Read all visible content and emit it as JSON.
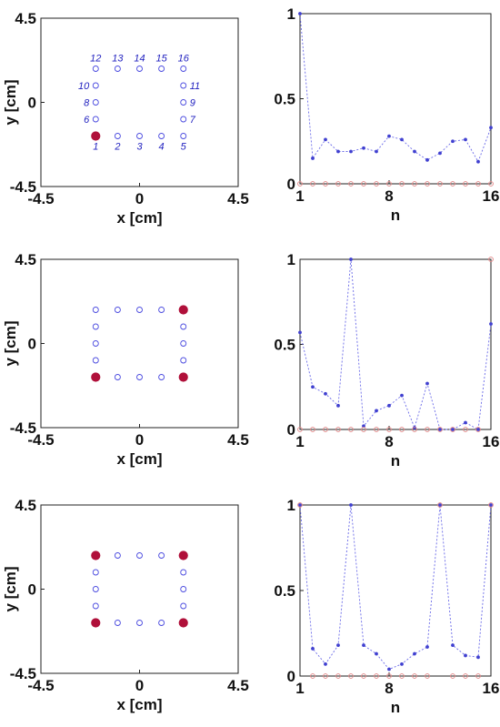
{
  "colors": {
    "open_marker": "#4a4adf",
    "filled_marker": "#b0103a",
    "series_line": "#6a6ae8",
    "zero_series": "#e08080"
  },
  "chart_data": [
    {
      "type": "scatter",
      "id": "layout1",
      "xlabel": "x [cm]",
      "ylabel": "y [cm]",
      "xlim": [
        -4.5,
        4.5
      ],
      "ylim": [
        -4.5,
        4.5
      ],
      "xticks": [
        -4.5,
        0,
        4.5
      ],
      "yticks": [
        -4.5,
        0,
        4.5
      ],
      "xtick_labels": [
        "-4.5",
        "0",
        "4.5"
      ],
      "ytick_labels": [
        "-4.5",
        "0",
        "4.5"
      ],
      "points": [
        {
          "n": 1,
          "label": "1",
          "x": -2,
          "y": -1.8,
          "filled": true
        },
        {
          "n": 2,
          "label": "2",
          "x": -1,
          "y": -1.8,
          "filled": false
        },
        {
          "n": 3,
          "label": "3",
          "x": 0,
          "y": -1.8,
          "filled": false
        },
        {
          "n": 4,
          "label": "4",
          "x": 1,
          "y": -1.8,
          "filled": false
        },
        {
          "n": 5,
          "label": "5",
          "x": 2,
          "y": -1.8,
          "filled": false
        },
        {
          "n": 6,
          "label": "6",
          "x": -2,
          "y": -0.9,
          "filled": false
        },
        {
          "n": 7,
          "label": "7",
          "x": 2,
          "y": -0.9,
          "filled": false
        },
        {
          "n": 8,
          "label": "8",
          "x": -2,
          "y": 0,
          "filled": false
        },
        {
          "n": 9,
          "label": "9",
          "x": 2,
          "y": 0,
          "filled": false
        },
        {
          "n": 10,
          "label": "10",
          "x": -2,
          "y": 0.9,
          "filled": false
        },
        {
          "n": 11,
          "label": "11",
          "x": 2,
          "y": 0.9,
          "filled": false
        },
        {
          "n": 12,
          "label": "12",
          "x": -2,
          "y": 1.8,
          "filled": false
        },
        {
          "n": 13,
          "label": "13",
          "x": -1,
          "y": 1.8,
          "filled": false
        },
        {
          "n": 14,
          "label": "14",
          "x": 0,
          "y": 1.8,
          "filled": false
        },
        {
          "n": 15,
          "label": "15",
          "x": 1,
          "y": 1.8,
          "filled": false
        },
        {
          "n": 16,
          "label": "16",
          "x": 2,
          "y": 1.8,
          "filled": false
        }
      ]
    },
    {
      "type": "line",
      "id": "response1",
      "xlabel": "n",
      "ylabel": "",
      "xlim": [
        1,
        16
      ],
      "ylim": [
        0,
        1
      ],
      "xticks": [
        1,
        8,
        16
      ],
      "yticks": [
        0,
        0.5,
        1
      ],
      "xtick_labels": [
        "1",
        "8",
        "16"
      ],
      "ytick_labels": [
        "0",
        "0.5",
        "1"
      ],
      "x": [
        1,
        2,
        3,
        4,
        5,
        6,
        7,
        8,
        9,
        10,
        11,
        12,
        13,
        14,
        15,
        16
      ],
      "series": [
        {
          "style": "blue-dotted-star",
          "values": [
            1.0,
            0.15,
            0.26,
            0.19,
            0.19,
            0.21,
            0.19,
            0.28,
            0.26,
            0.19,
            0.14,
            0.18,
            0.25,
            0.26,
            0.13,
            0.33
          ]
        },
        {
          "style": "red-open-circle",
          "values": [
            0,
            0,
            0,
            0,
            0,
            0,
            0,
            0,
            0,
            0,
            0,
            0,
            0,
            0,
            0,
            0
          ]
        }
      ]
    },
    {
      "type": "scatter",
      "id": "layout2",
      "xlabel": "x [cm]",
      "ylabel": "y [cm]",
      "xlim": [
        -4.5,
        4.5
      ],
      "ylim": [
        -4.5,
        4.5
      ],
      "xticks": [
        -4.5,
        0,
        4.5
      ],
      "yticks": [
        -4.5,
        0,
        4.5
      ],
      "xtick_labels": [
        "-4.5",
        "0",
        "4.5"
      ],
      "ytick_labels": [
        "-4.5",
        "0",
        "4.5"
      ],
      "points": [
        {
          "n": 1,
          "x": -2,
          "y": -1.8,
          "filled": true
        },
        {
          "n": 2,
          "x": -1,
          "y": -1.8,
          "filled": false
        },
        {
          "n": 3,
          "x": 0,
          "y": -1.8,
          "filled": false
        },
        {
          "n": 4,
          "x": 1,
          "y": -1.8,
          "filled": false
        },
        {
          "n": 5,
          "x": 2,
          "y": -1.8,
          "filled": true
        },
        {
          "n": 6,
          "x": -2,
          "y": -0.9,
          "filled": false
        },
        {
          "n": 7,
          "x": 2,
          "y": -0.9,
          "filled": false
        },
        {
          "n": 8,
          "x": -2,
          "y": 0,
          "filled": false
        },
        {
          "n": 9,
          "x": 2,
          "y": 0,
          "filled": false
        },
        {
          "n": 10,
          "x": -2,
          "y": 0.9,
          "filled": false
        },
        {
          "n": 11,
          "x": 2,
          "y": 0.9,
          "filled": false
        },
        {
          "n": 12,
          "x": -2,
          "y": 1.8,
          "filled": false
        },
        {
          "n": 13,
          "x": -1,
          "y": 1.8,
          "filled": false
        },
        {
          "n": 14,
          "x": 0,
          "y": 1.8,
          "filled": false
        },
        {
          "n": 15,
          "x": 1,
          "y": 1.8,
          "filled": false
        },
        {
          "n": 16,
          "x": 2,
          "y": 1.8,
          "filled": true
        }
      ]
    },
    {
      "type": "line",
      "id": "response2",
      "xlabel": "n",
      "ylabel": "",
      "xlim": [
        1,
        16
      ],
      "ylim": [
        0,
        1
      ],
      "xticks": [
        1,
        8,
        16
      ],
      "yticks": [
        0,
        0.5,
        1
      ],
      "xtick_labels": [
        "1",
        "8",
        "16"
      ],
      "ytick_labels": [
        "0",
        "0.5",
        "1"
      ],
      "x": [
        1,
        2,
        3,
        4,
        5,
        6,
        7,
        8,
        9,
        10,
        11,
        12,
        13,
        14,
        15,
        16
      ],
      "series": [
        {
          "style": "blue-dotted-star",
          "values": [
            0.57,
            0.25,
            0.21,
            0.14,
            1.0,
            0.02,
            0.11,
            0.14,
            0.2,
            0.01,
            0.27,
            0.0,
            0.0,
            0.04,
            0.0,
            0.62
          ]
        },
        {
          "style": "red-open-circle",
          "values": [
            0,
            0,
            0,
            0,
            0,
            0,
            0,
            0,
            0,
            0,
            0,
            0,
            0,
            0,
            0,
            1.0
          ]
        }
      ]
    },
    {
      "type": "scatter",
      "id": "layout3",
      "xlabel": "x [cm]",
      "ylabel": "y [cm]",
      "xlim": [
        -4.5,
        4.5
      ],
      "ylim": [
        -4.5,
        4.5
      ],
      "xticks": [
        -4.5,
        0,
        4.5
      ],
      "yticks": [
        -4.5,
        0,
        4.5
      ],
      "xtick_labels": [
        "-4.5",
        "0",
        "4.5"
      ],
      "ytick_labels": [
        "-4.5",
        "0",
        "4.5"
      ],
      "points": [
        {
          "n": 1,
          "x": -2,
          "y": -1.8,
          "filled": true
        },
        {
          "n": 2,
          "x": -1,
          "y": -1.8,
          "filled": false
        },
        {
          "n": 3,
          "x": 0,
          "y": -1.8,
          "filled": false
        },
        {
          "n": 4,
          "x": 1,
          "y": -1.8,
          "filled": false
        },
        {
          "n": 5,
          "x": 2,
          "y": -1.8,
          "filled": true
        },
        {
          "n": 6,
          "x": -2,
          "y": -0.9,
          "filled": false
        },
        {
          "n": 7,
          "x": 2,
          "y": -0.9,
          "filled": false
        },
        {
          "n": 8,
          "x": -2,
          "y": 0,
          "filled": false
        },
        {
          "n": 9,
          "x": 2,
          "y": 0,
          "filled": false
        },
        {
          "n": 10,
          "x": -2,
          "y": 0.9,
          "filled": false
        },
        {
          "n": 11,
          "x": 2,
          "y": 0.9,
          "filled": false
        },
        {
          "n": 12,
          "x": -2,
          "y": 1.8,
          "filled": true
        },
        {
          "n": 13,
          "x": -1,
          "y": 1.8,
          "filled": false
        },
        {
          "n": 14,
          "x": 0,
          "y": 1.8,
          "filled": false
        },
        {
          "n": 15,
          "x": 1,
          "y": 1.8,
          "filled": false
        },
        {
          "n": 16,
          "x": 2,
          "y": 1.8,
          "filled": true
        }
      ]
    },
    {
      "type": "line",
      "id": "response3",
      "xlabel": "n",
      "ylabel": "",
      "xlim": [
        1,
        16
      ],
      "ylim": [
        0,
        1
      ],
      "xticks": [
        1,
        8,
        16
      ],
      "yticks": [
        0,
        0.5,
        1
      ],
      "xtick_labels": [
        "1",
        "8",
        "16"
      ],
      "ytick_labels": [
        "0",
        "0.5",
        "1"
      ],
      "x": [
        1,
        2,
        3,
        4,
        5,
        6,
        7,
        8,
        9,
        10,
        11,
        12,
        13,
        14,
        15,
        16
      ],
      "series": [
        {
          "style": "blue-dotted-star",
          "values": [
            1.0,
            0.16,
            0.07,
            0.18,
            1.0,
            0.18,
            0.13,
            0.04,
            0.07,
            0.13,
            0.17,
            1.0,
            0.18,
            0.12,
            0.11,
            1.0
          ]
        },
        {
          "style": "red-open-circle",
          "values": [
            1.0,
            0,
            0,
            0,
            0,
            0,
            0,
            0,
            0,
            0,
            0,
            1.0,
            0,
            0,
            0,
            1.0
          ]
        }
      ]
    }
  ]
}
